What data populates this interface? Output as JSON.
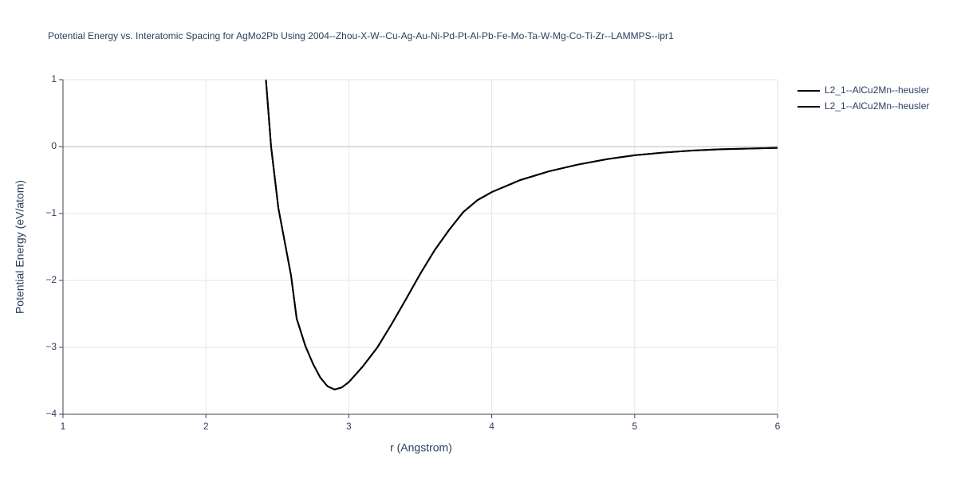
{
  "chart_data": {
    "type": "line",
    "title": "Potential Energy vs. Interatomic Spacing for AgMo2Pb Using 2004--Zhou-X-W--Cu-Ag-Au-Ni-Pd-Pt-Al-Pb-Fe-Mo-Ta-W-Mg-Co-Ti-Zr--LAMMPS--ipr1",
    "x_label": "r (Angstrom)",
    "y_label": "Potential Energy (eV/atom)",
    "x": [
      2.42,
      2.456,
      2.507,
      2.596,
      2.635,
      2.696,
      2.75,
      2.8,
      2.85,
      2.9,
      2.95,
      3.0,
      3.1,
      3.2,
      3.3,
      3.4,
      3.5,
      3.6,
      3.7,
      3.8,
      3.9,
      4.0,
      4.2,
      4.4,
      4.6,
      4.8,
      5.0,
      5.2,
      5.4,
      5.6,
      5.8,
      6.0
    ],
    "series": [
      {
        "name": "L2_1--AlCu2Mn--heusler",
        "color": "#000000",
        "values": [
          1.0,
          0.0,
          -0.92,
          -1.93,
          -2.57,
          -2.98,
          -3.25,
          -3.45,
          -3.58,
          -3.63,
          -3.6,
          -3.52,
          -3.28,
          -3.0,
          -2.65,
          -2.28,
          -1.9,
          -1.55,
          -1.25,
          -0.98,
          -0.8,
          -0.68,
          -0.5,
          -0.37,
          -0.27,
          -0.19,
          -0.13,
          -0.09,
          -0.06,
          -0.04,
          -0.03,
          -0.02
        ]
      },
      {
        "name": "L2_1--AlCu2Mn--heusler",
        "color": "#000000",
        "values": [
          1.0,
          0.0,
          -0.92,
          -1.93,
          -2.57,
          -2.98,
          -3.25,
          -3.45,
          -3.58,
          -3.63,
          -3.6,
          -3.52,
          -3.28,
          -3.0,
          -2.65,
          -2.28,
          -1.9,
          -1.55,
          -1.25,
          -0.98,
          -0.8,
          -0.68,
          -0.5,
          -0.37,
          -0.27,
          -0.19,
          -0.13,
          -0.09,
          -0.06,
          -0.04,
          -0.03,
          -0.02
        ]
      }
    ],
    "xlim": [
      1,
      6
    ],
    "xticks": [
      1,
      2,
      3,
      4,
      5,
      6
    ],
    "ylim": [
      -4,
      1
    ],
    "yticks": [
      {
        "value": -4,
        "label": "−4"
      },
      {
        "value": -3,
        "label": "−3"
      },
      {
        "value": -2,
        "label": "−2"
      },
      {
        "value": -1,
        "label": "−1"
      },
      0,
      1
    ],
    "grid": true
  }
}
